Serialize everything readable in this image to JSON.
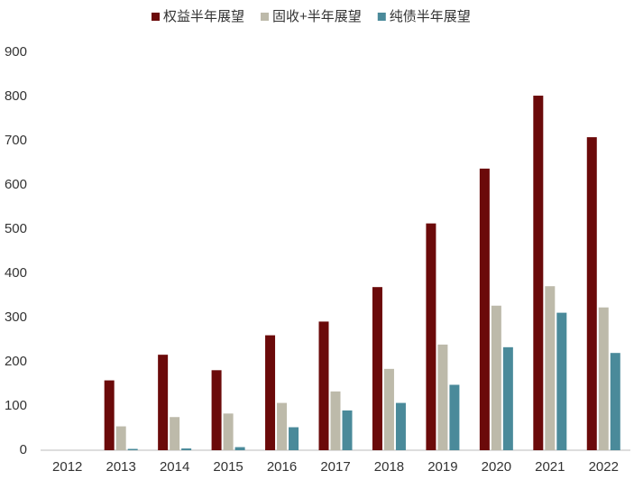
{
  "chart_data": {
    "type": "bar",
    "categories": [
      "2012",
      "2013",
      "2014",
      "2015",
      "2016",
      "2017",
      "2018",
      "2019",
      "2020",
      "2021",
      "2022"
    ],
    "series": [
      {
        "name": "权益半年展望",
        "color": "#6b0a0a",
        "values": [
          0,
          158,
          216,
          181,
          260,
          291,
          369,
          513,
          637,
          802,
          708
        ]
      },
      {
        "name": "固收+半年展望",
        "color": "#bdbaaa",
        "values": [
          0,
          54,
          75,
          83,
          107,
          133,
          184,
          239,
          327,
          371,
          323
        ]
      },
      {
        "name": "纯债半年展望",
        "color": "#4a8a9a",
        "values": [
          0,
          3,
          4,
          7,
          52,
          90,
          107,
          148,
          233,
          311,
          220
        ]
      }
    ],
    "ylim": [
      0,
      900
    ],
    "yticks": [
      0,
      100,
      200,
      300,
      400,
      500,
      600,
      700,
      800,
      900
    ],
    "grid": false,
    "legend": "top"
  }
}
